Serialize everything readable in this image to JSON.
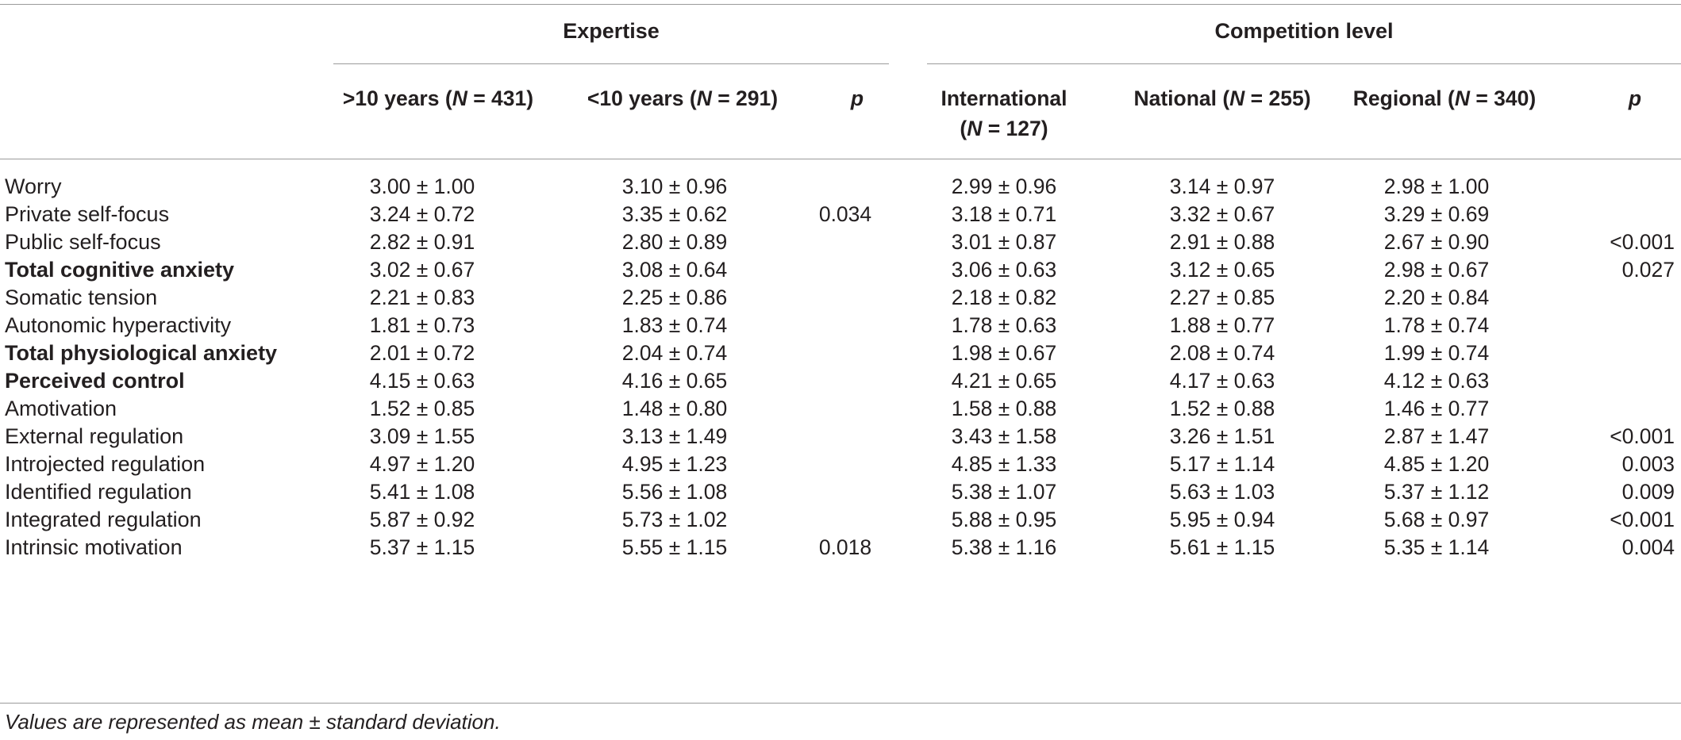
{
  "groups": {
    "expertise": "Expertise",
    "competition": "Competition level"
  },
  "columns": {
    "exp_gt10": {
      "pre": ">10 years (",
      "n": "N",
      "post": " = 431)"
    },
    "exp_lt10": {
      "pre": "<10 years (",
      "n": "N",
      "post": " = 291)"
    },
    "exp_p": "p",
    "international": {
      "line1": "International",
      "pre": "(",
      "n": "N",
      "post": " = 127)"
    },
    "national": {
      "pre": "National (",
      "n": "N",
      "post": " = 255)"
    },
    "regional": {
      "pre": "Regional (",
      "n": "N",
      "post": " = 340)"
    },
    "comp_p": "p"
  },
  "rows": [
    {
      "label": "Worry",
      "bold": false,
      "v": [
        "3.00 ± 1.00",
        "3.10 ± 0.96",
        "",
        "2.99 ± 0.96",
        "3.14 ± 0.97",
        "2.98 ± 1.00",
        ""
      ]
    },
    {
      "label": "Private self-focus",
      "bold": false,
      "v": [
        "3.24 ± 0.72",
        "3.35 ± 0.62",
        "0.034",
        "3.18 ± 0.71",
        "3.32 ± 0.67",
        "3.29 ± 0.69",
        ""
      ]
    },
    {
      "label": "Public self-focus",
      "bold": false,
      "v": [
        "2.82 ± 0.91",
        "2.80 ± 0.89",
        "",
        "3.01 ± 0.87",
        "2.91 ± 0.88",
        "2.67 ± 0.90",
        "<0.001"
      ]
    },
    {
      "label": "Total cognitive anxiety",
      "bold": true,
      "v": [
        "3.02 ± 0.67",
        "3.08 ± 0.64",
        "",
        "3.06 ± 0.63",
        "3.12 ± 0.65",
        "2.98 ± 0.67",
        "0.027"
      ]
    },
    {
      "label": "Somatic tension",
      "bold": false,
      "v": [
        "2.21 ± 0.83",
        "2.25 ± 0.86",
        "",
        "2.18 ± 0.82",
        "2.27 ± 0.85",
        "2.20 ± 0.84",
        ""
      ]
    },
    {
      "label": "Autonomic hyperactivity",
      "bold": false,
      "v": [
        "1.81 ± 0.73",
        "1.83 ± 0.74",
        "",
        "1.78 ± 0.63",
        "1.88 ± 0.77",
        "1.78 ± 0.74",
        ""
      ]
    },
    {
      "label": "Total physiological anxiety",
      "bold": true,
      "v": [
        "2.01 ± 0.72",
        "2.04 ± 0.74",
        "",
        "1.98 ± 0.67",
        "2.08 ± 0.74",
        "1.99 ± 0.74",
        ""
      ]
    },
    {
      "label": "Perceived control",
      "bold": true,
      "v": [
        "4.15 ± 0.63",
        "4.16 ± 0.65",
        "",
        "4.21 ± 0.65",
        "4.17 ± 0.63",
        "4.12 ± 0.63",
        ""
      ]
    },
    {
      "label": "Amotivation",
      "bold": false,
      "v": [
        "1.52 ± 0.85",
        "1.48 ± 0.80",
        "",
        "1.58 ± 0.88",
        "1.52 ± 0.88",
        "1.46 ± 0.77",
        ""
      ]
    },
    {
      "label": "External regulation",
      "bold": false,
      "v": [
        "3.09 ± 1.55",
        "3.13 ± 1.49",
        "",
        "3.43 ± 1.58",
        "3.26 ± 1.51",
        "2.87 ± 1.47",
        "<0.001"
      ]
    },
    {
      "label": "Introjected regulation",
      "bold": false,
      "v": [
        "4.97 ± 1.20",
        "4.95 ± 1.23",
        "",
        "4.85 ± 1.33",
        "5.17 ± 1.14",
        "4.85 ± 1.20",
        "0.003"
      ]
    },
    {
      "label": "Identified regulation",
      "bold": false,
      "v": [
        "5.41 ± 1.08",
        "5.56 ± 1.08",
        "",
        "5.38 ± 1.07",
        "5.63 ± 1.03",
        "5.37 ± 1.12",
        "0.009"
      ]
    },
    {
      "label": "Integrated regulation",
      "bold": false,
      "v": [
        "5.87 ± 0.92",
        "5.73 ± 1.02",
        "",
        "5.88 ± 0.95",
        "5.95 ± 0.94",
        "5.68 ± 0.97",
        "<0.001"
      ]
    },
    {
      "label": "Intrinsic motivation",
      "bold": false,
      "v": [
        "5.37 ± 1.15",
        "5.55 ± 1.15",
        "0.018",
        "5.38 ± 1.16",
        "5.61 ± 1.15",
        "5.35 ± 1.14",
        "0.004"
      ]
    }
  ],
  "footnote": "Values are represented as mean ± standard deviation."
}
